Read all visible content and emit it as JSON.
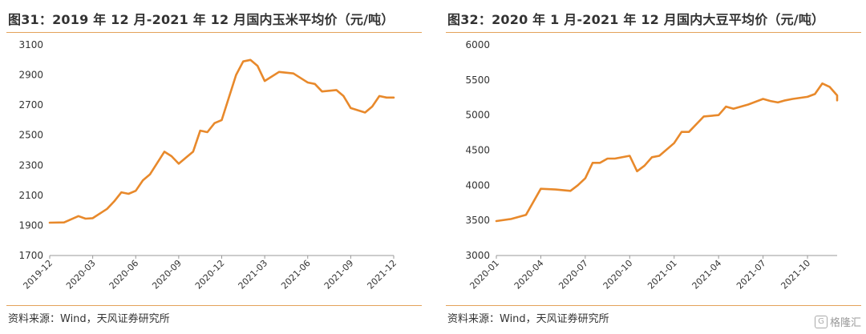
{
  "panels": [
    {
      "title": "图31：2019 年 12 月-2021 年 12 月国内玉米平均价（元/吨）",
      "source": "资料来源：Wind，天风证券研究所"
    },
    {
      "title": "图32：2020 年 1 月-2021 年 12 月国内大豆平均价（元/吨）",
      "source": "资料来源：Wind，天风证券研究所"
    }
  ],
  "watermark": {
    "icon": "gelonghui-logo-icon",
    "text": "格隆汇"
  },
  "colors": {
    "line": "#e8892b",
    "rule": "#e3a25a",
    "axis": "#999999"
  },
  "chart_data": [
    {
      "type": "line",
      "title": "",
      "xlabel": "",
      "ylabel": "",
      "ylim": [
        1700,
        3100
      ],
      "yticks": [
        "1700",
        "1900",
        "2100",
        "2300",
        "2500",
        "2700",
        "2900",
        "3100"
      ],
      "xlim": [
        "2019-12",
        "2021-12"
      ],
      "xticks": [
        "2019-12",
        "2020-03",
        "2020-06",
        "2020-09",
        "2020-12",
        "2021-03",
        "2021-06",
        "2021-09",
        "2021-12"
      ],
      "grid": false,
      "legend": "none",
      "series": [
        {
          "values": [
            [
              "2019-12",
              1918
            ],
            [
              "2020-01",
              1920
            ],
            [
              "2020-02",
              1962
            ],
            [
              "2020-02",
              1945
            ],
            [
              "2020-03",
              1948
            ],
            [
              "2020-04",
              2010
            ],
            [
              "2020-04",
              2060
            ],
            [
              "2020-05",
              2120
            ],
            [
              "2020-05",
              2110
            ],
            [
              "2020-06",
              2130
            ],
            [
              "2020-06",
              2200
            ],
            [
              "2020-07",
              2240
            ],
            [
              "2020-08",
              2390
            ],
            [
              "2020-08",
              2360
            ],
            [
              "2020-09",
              2310
            ],
            [
              "2020-09",
              2350
            ],
            [
              "2020-10",
              2390
            ],
            [
              "2020-10",
              2530
            ],
            [
              "2020-11",
              2520
            ],
            [
              "2020-11",
              2580
            ],
            [
              "2020-12",
              2600
            ],
            [
              "2021-01",
              2900
            ],
            [
              "2021-01",
              2990
            ],
            [
              "2021-02",
              3000
            ],
            [
              "2021-02",
              2960
            ],
            [
              "2021-03",
              2860
            ],
            [
              "2021-04",
              2920
            ],
            [
              "2021-05",
              2910
            ],
            [
              "2021-06",
              2850
            ],
            [
              "2021-06",
              2840
            ],
            [
              "2021-07",
              2790
            ],
            [
              "2021-08",
              2800
            ],
            [
              "2021-08",
              2760
            ],
            [
              "2021-09",
              2680
            ],
            [
              "2021-10",
              2650
            ],
            [
              "2021-10",
              2690
            ],
            [
              "2021-11",
              2760
            ],
            [
              "2021-11",
              2750
            ],
            [
              "2021-12",
              2750
            ]
          ]
        }
      ]
    },
    {
      "type": "line",
      "title": "",
      "xlabel": "",
      "ylabel": "",
      "ylim": [
        3000,
        6000
      ],
      "yticks": [
        "3000",
        "3500",
        "4000",
        "4500",
        "5000",
        "5500",
        "6000"
      ],
      "xlim": [
        "2020-01",
        "2021-12"
      ],
      "xticks": [
        "2020-01",
        "2020-04",
        "2020-07",
        "2020-10",
        "2021-01",
        "2021-04",
        "2021-07",
        "2021-10"
      ],
      "grid": false,
      "legend": "none",
      "series": [
        {
          "values": [
            [
              "2020-01",
              3490
            ],
            [
              "2020-02",
              3520
            ],
            [
              "2020-03",
              3580
            ],
            [
              "2020-04",
              3950
            ],
            [
              "2020-05",
              3940
            ],
            [
              "2020-06",
              3920
            ],
            [
              "2020-06",
              4000
            ],
            [
              "2020-07",
              4100
            ],
            [
              "2020-07",
              4320
            ],
            [
              "2020-08",
              4320
            ],
            [
              "2020-08",
              4380
            ],
            [
              "2020-09",
              4380
            ],
            [
              "2020-10",
              4420
            ],
            [
              "2020-10",
              4200
            ],
            [
              "2020-11",
              4280
            ],
            [
              "2020-11",
              4400
            ],
            [
              "2020-12",
              4420
            ],
            [
              "2021-01",
              4600
            ],
            [
              "2021-01",
              4760
            ],
            [
              "2021-02",
              4760
            ],
            [
              "2021-03",
              4980
            ],
            [
              "2021-04",
              5000
            ],
            [
              "2021-04",
              5120
            ],
            [
              "2021-05",
              5090
            ],
            [
              "2021-06",
              5150
            ],
            [
              "2021-07",
              5230
            ],
            [
              "2021-07",
              5200
            ],
            [
              "2021-08",
              5180
            ],
            [
              "2021-08",
              5210
            ],
            [
              "2021-09",
              5230
            ],
            [
              "2021-10",
              5260
            ],
            [
              "2021-10",
              5300
            ],
            [
              "2021-11",
              5450
            ],
            [
              "2021-11",
              5400
            ],
            [
              "2021-12",
              5280
            ],
            [
              "2021-12",
              5210
            ]
          ]
        }
      ]
    }
  ]
}
